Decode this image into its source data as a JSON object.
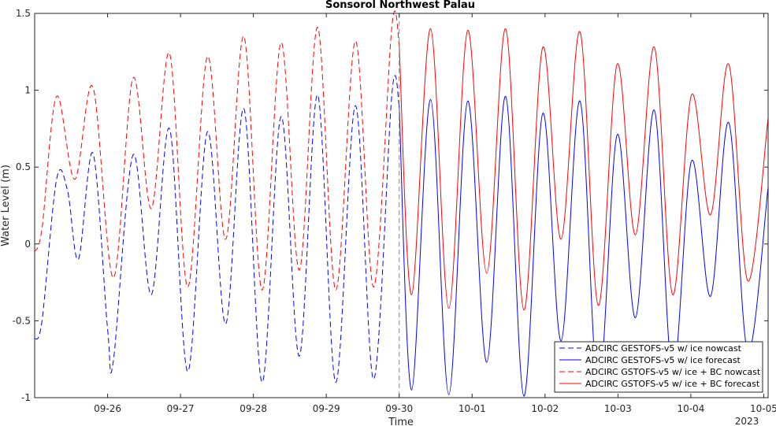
{
  "chart_data": {
    "type": "line",
    "title": "Sonsorol Northwest Palau",
    "xlabel": "Time",
    "ylabel": "Water Level (m)",
    "xlim": [
      25.0,
      35.06
    ],
    "ylim": [
      -1,
      1.5
    ],
    "xticks": [
      {
        "value": 26,
        "label": "09-26"
      },
      {
        "value": 27,
        "label": "09-27"
      },
      {
        "value": 28,
        "label": "09-28"
      },
      {
        "value": 29,
        "label": "09-29"
      },
      {
        "value": 30,
        "label": "09-30"
      },
      {
        "value": 31,
        "label": "10-01"
      },
      {
        "value": 32,
        "label": "10-02"
      },
      {
        "value": 33,
        "label": "10-03"
      },
      {
        "value": 34,
        "label": "10-04"
      },
      {
        "value": 35,
        "label": "10-05"
      }
    ],
    "x_year_label": "2023",
    "yticks": [
      {
        "value": -1,
        "label": "-1"
      },
      {
        "value": -0.5,
        "label": "-0.5"
      },
      {
        "value": 0,
        "label": "0"
      },
      {
        "value": 0.5,
        "label": "0.5"
      },
      {
        "value": 1,
        "label": "1"
      },
      {
        "value": 1.5,
        "label": "1.5"
      }
    ],
    "nowcast_end": 30.0,
    "grid": false,
    "legend_position": "bottom-right",
    "series": [
      {
        "name": "ADCIRC GESTOFS-v5 w/ ice nowcast",
        "color": "#0000ff",
        "dash": "dashed",
        "points": [
          [
            25.0,
            -0.62
          ],
          [
            25.1,
            -0.5
          ],
          [
            25.3,
            0.42
          ],
          [
            25.45,
            0.35
          ],
          [
            25.6,
            -0.1
          ],
          [
            25.8,
            0.59
          ],
          [
            26.0,
            -0.55
          ],
          [
            26.08,
            -0.76
          ],
          [
            26.35,
            0.58
          ],
          [
            26.6,
            -0.33
          ],
          [
            26.85,
            0.75
          ],
          [
            27.1,
            -0.83
          ],
          [
            27.37,
            0.73
          ],
          [
            27.62,
            -0.52
          ],
          [
            27.87,
            0.88
          ],
          [
            28.12,
            -0.9
          ],
          [
            28.38,
            0.83
          ],
          [
            28.63,
            -0.73
          ],
          [
            28.88,
            0.97
          ],
          [
            29.13,
            -0.9
          ],
          [
            29.4,
            0.9
          ],
          [
            29.65,
            -0.88
          ],
          [
            29.9,
            0.98
          ],
          [
            30.0,
            0.9
          ]
        ]
      },
      {
        "name": "ADCIRC GESTOFS-v5 w/ ice forecast",
        "color": "#0000ff",
        "dash": "solid",
        "points": [
          [
            30.0,
            0.9
          ],
          [
            30.17,
            -0.95
          ],
          [
            30.43,
            0.94
          ],
          [
            30.68,
            -0.98
          ],
          [
            30.94,
            0.93
          ],
          [
            31.2,
            -0.77
          ],
          [
            31.46,
            0.96
          ],
          [
            31.71,
            -0.99
          ],
          [
            31.97,
            0.85
          ],
          [
            32.22,
            -0.63
          ],
          [
            32.48,
            0.93
          ],
          [
            32.73,
            -0.95
          ],
          [
            32.99,
            0.71
          ],
          [
            33.24,
            -0.48
          ],
          [
            33.5,
            0.87
          ],
          [
            33.75,
            -0.85
          ],
          [
            34.01,
            0.54
          ],
          [
            34.27,
            -0.34
          ],
          [
            34.52,
            0.79
          ],
          [
            34.78,
            -0.7
          ],
          [
            35.06,
            0.37
          ]
        ]
      },
      {
        "name": "ADCIRC GSTOFS-v5 w/ ice + BC nowcast",
        "color": "#ff0000",
        "dash": "dashed",
        "points": [
          [
            25.0,
            -0.05
          ],
          [
            25.1,
            0.1
          ],
          [
            25.3,
            0.96
          ],
          [
            25.55,
            0.42
          ],
          [
            25.8,
            1.02
          ],
          [
            26.08,
            -0.22
          ],
          [
            26.35,
            1.08
          ],
          [
            26.6,
            0.23
          ],
          [
            26.85,
            1.24
          ],
          [
            27.1,
            -0.28
          ],
          [
            27.37,
            1.22
          ],
          [
            27.62,
            0.03
          ],
          [
            27.87,
            1.35
          ],
          [
            28.12,
            -0.3
          ],
          [
            28.38,
            1.31
          ],
          [
            28.63,
            -0.17
          ],
          [
            28.88,
            1.41
          ],
          [
            29.13,
            -0.3
          ],
          [
            29.4,
            1.32
          ],
          [
            29.65,
            -0.28
          ],
          [
            29.9,
            1.42
          ],
          [
            30.0,
            1.3
          ]
        ]
      },
      {
        "name": "ADCIRC GSTOFS-v5 w/ ice + BC forecast",
        "color": "#ff0000",
        "dash": "solid",
        "points": [
          [
            30.0,
            1.3
          ],
          [
            30.17,
            -0.33
          ],
          [
            30.43,
            1.4
          ],
          [
            30.68,
            -0.42
          ],
          [
            30.94,
            1.39
          ],
          [
            31.2,
            -0.19
          ],
          [
            31.46,
            1.4
          ],
          [
            31.71,
            -0.43
          ],
          [
            31.97,
            1.28
          ],
          [
            32.22,
            0.03
          ],
          [
            32.48,
            1.38
          ],
          [
            32.73,
            -0.4
          ],
          [
            32.99,
            1.17
          ],
          [
            33.24,
            0.06
          ],
          [
            33.5,
            1.28
          ],
          [
            33.75,
            -0.33
          ],
          [
            34.01,
            0.97
          ],
          [
            34.27,
            0.19
          ],
          [
            34.52,
            1.17
          ],
          [
            34.78,
            -0.24
          ],
          [
            35.06,
            0.82
          ]
        ]
      }
    ]
  }
}
